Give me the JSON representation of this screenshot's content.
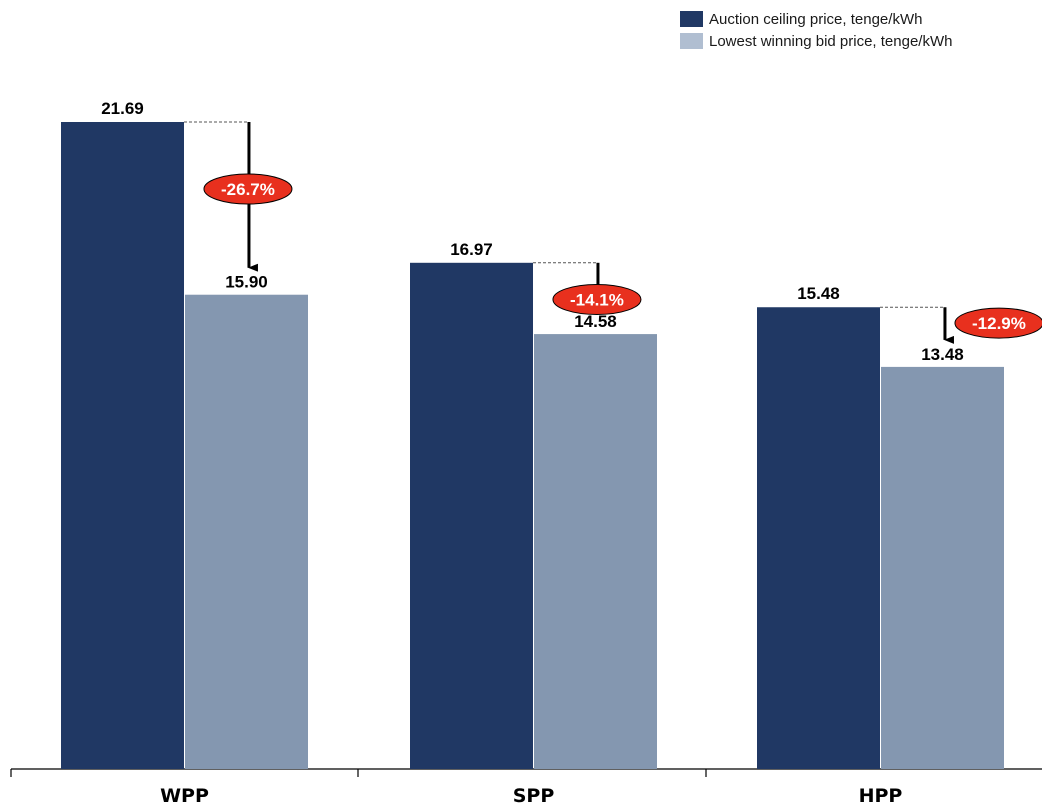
{
  "chart_data": {
    "type": "bar",
    "title": "",
    "xlabel": "",
    "ylabel": "",
    "categories": [
      "WPP",
      "SPP",
      "HPP"
    ],
    "series": [
      {
        "name": "Auction ceiling price, tenge/kWh",
        "color": "#203864",
        "values": [
          21.69,
          16.97,
          15.48
        ]
      },
      {
        "name": "Lowest winning bid price, tenge/kWh",
        "color": "#8497b0",
        "values": [
          15.9,
          14.58,
          13.48
        ]
      }
    ],
    "value_labels": {
      "ceiling": [
        "21.69",
        "16.97",
        "15.48"
      ],
      "lowest": [
        "15.90",
        "14.58",
        "13.48"
      ]
    },
    "changes": [
      "-26.7%",
      "-14.1%",
      "-12.9%"
    ],
    "ylim": [
      0,
      21.69
    ],
    "grid": false,
    "legend_position": "top-right",
    "colors": {
      "badge": "#e8301e",
      "legend_light": "#b0bed1"
    }
  }
}
